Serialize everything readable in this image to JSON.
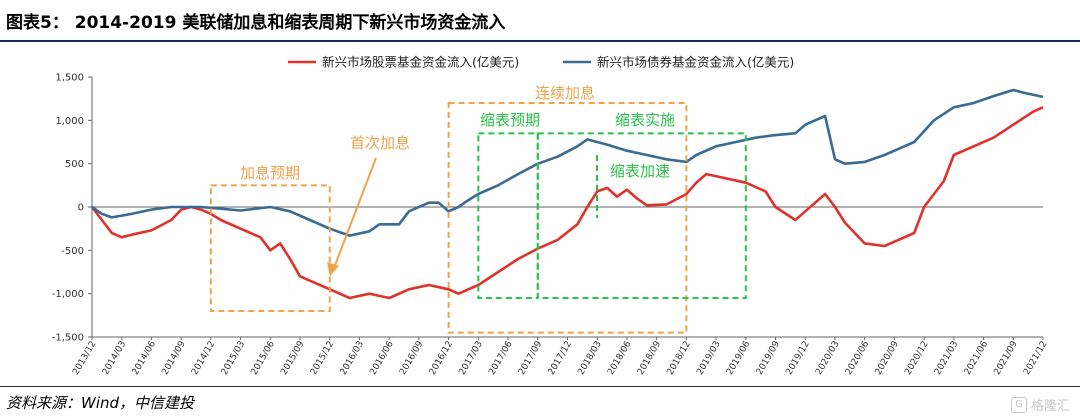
{
  "figure": {
    "title": "图表5： 2014-2019 美联储加息和缩表周期下新兴市场资金流入",
    "source": "资料来源：Wind，中信建投",
    "watermark": "格隆汇"
  },
  "colors": {
    "equity": "#e0312a",
    "bond": "#3a6b94",
    "orange": "#f0a24a",
    "green": "#27c24a",
    "rule": "#1a2c5b"
  },
  "chart_data": {
    "type": "line",
    "y_range": [
      -1500,
      1500
    ],
    "y_ticks": [
      "1,500",
      "1,000",
      "500",
      "0",
      "-500",
      "-1,000",
      "-1,500"
    ],
    "x_ticks": [
      "2013/12",
      "2014/03",
      "2014/06",
      "2014/09",
      "2014/12",
      "2015/03",
      "2015/06",
      "2015/09",
      "2015/12",
      "2016/03",
      "2016/06",
      "2016/09",
      "2016/12",
      "2017/03",
      "2017/06",
      "2017/09",
      "2017/12",
      "2018/03",
      "2018/06",
      "2018/09",
      "2018/12",
      "2019/03",
      "2019/06",
      "2019/09",
      "2019/12",
      "2020/03",
      "2020/06",
      "2020/09",
      "2020/12",
      "2021/03",
      "2021/06",
      "2021/09",
      "2021/12"
    ],
    "series": [
      {
        "name": "新兴市场股票基金资金流入(亿美元)",
        "color": "#e0312a",
        "points": [
          [
            "2013/12",
            0
          ],
          [
            "2014/01",
            -150
          ],
          [
            "2014/02",
            -300
          ],
          [
            "2014/03",
            -350
          ],
          [
            "2014/04",
            -320
          ],
          [
            "2014/06",
            -270
          ],
          [
            "2014/08",
            -150
          ],
          [
            "2014/09",
            -30
          ],
          [
            "2014/10",
            0
          ],
          [
            "2014/11",
            -30
          ],
          [
            "2014/12",
            -80
          ],
          [
            "2015/01",
            -150
          ],
          [
            "2015/03",
            -250
          ],
          [
            "2015/05",
            -350
          ],
          [
            "2015/06",
            -500
          ],
          [
            "2015/07",
            -420
          ],
          [
            "2015/08",
            -600
          ],
          [
            "2015/09",
            -800
          ],
          [
            "2015/10",
            -850
          ],
          [
            "2015/12",
            -950
          ],
          [
            "2016/02",
            -1050
          ],
          [
            "2016/04",
            -1000
          ],
          [
            "2016/06",
            -1050
          ],
          [
            "2016/08",
            -950
          ],
          [
            "2016/10",
            -900
          ],
          [
            "2016/12",
            -950
          ],
          [
            "2017/01",
            -1000
          ],
          [
            "2017/03",
            -900
          ],
          [
            "2017/05",
            -750
          ],
          [
            "2017/07",
            -600
          ],
          [
            "2017/09",
            -480
          ],
          [
            "2017/11",
            -380
          ],
          [
            "2018/01",
            -200
          ],
          [
            "2018/02",
            0
          ],
          [
            "2018/03",
            180
          ],
          [
            "2018/04",
            220
          ],
          [
            "2018/05",
            120
          ],
          [
            "2018/06",
            200
          ],
          [
            "2018/07",
            100
          ],
          [
            "2018/08",
            20
          ],
          [
            "2018/10",
            30
          ],
          [
            "2018/12",
            150
          ],
          [
            "2019/01",
            280
          ],
          [
            "2019/02",
            380
          ],
          [
            "2019/04",
            330
          ],
          [
            "2019/06",
            280
          ],
          [
            "2019/08",
            180
          ],
          [
            "2019/09",
            0
          ],
          [
            "2019/11",
            -150
          ],
          [
            "2019/12",
            -50
          ],
          [
            "2020/02",
            150
          ],
          [
            "2020/03",
            0
          ],
          [
            "2020/04",
            -180
          ],
          [
            "2020/05",
            -300
          ],
          [
            "2020/06",
            -420
          ],
          [
            "2020/08",
            -450
          ],
          [
            "2020/09",
            -400
          ],
          [
            "2020/11",
            -300
          ],
          [
            "2020/12",
            0
          ],
          [
            "2021/02",
            300
          ],
          [
            "2021/03",
            600
          ],
          [
            "2021/05",
            700
          ],
          [
            "2021/07",
            800
          ],
          [
            "2021/09",
            950
          ],
          [
            "2021/11",
            1100
          ],
          [
            "2021/12",
            1150
          ]
        ]
      },
      {
        "name": "新兴市场债券基金资金流入(亿美元)",
        "color": "#3a6b94",
        "points": [
          [
            "2013/12",
            0
          ],
          [
            "2014/01",
            -80
          ],
          [
            "2014/02",
            -120
          ],
          [
            "2014/04",
            -80
          ],
          [
            "2014/06",
            -30
          ],
          [
            "2014/08",
            0
          ],
          [
            "2014/09",
            0
          ],
          [
            "2014/11",
            0
          ],
          [
            "2015/01",
            -20
          ],
          [
            "2015/03",
            -40
          ],
          [
            "2015/06",
            0
          ],
          [
            "2015/08",
            -50
          ],
          [
            "2015/10",
            -150
          ],
          [
            "2015/12",
            -250
          ],
          [
            "2016/02",
            -330
          ],
          [
            "2016/04",
            -280
          ],
          [
            "2016/05",
            -200
          ],
          [
            "2016/07",
            -200
          ],
          [
            "2016/08",
            -50
          ],
          [
            "2016/10",
            50
          ],
          [
            "2016/11",
            50
          ],
          [
            "2016/12",
            -50
          ],
          [
            "2017/01",
            0
          ],
          [
            "2017/02",
            80
          ],
          [
            "2017/03",
            150
          ],
          [
            "2017/05",
            250
          ],
          [
            "2017/07",
            380
          ],
          [
            "2017/09",
            500
          ],
          [
            "2017/11",
            580
          ],
          [
            "2018/01",
            700
          ],
          [
            "2018/02",
            780
          ],
          [
            "2018/04",
            720
          ],
          [
            "2018/06",
            650
          ],
          [
            "2018/08",
            600
          ],
          [
            "2018/10",
            550
          ],
          [
            "2018/12",
            520
          ],
          [
            "2019/01",
            600
          ],
          [
            "2019/03",
            700
          ],
          [
            "2019/05",
            750
          ],
          [
            "2019/07",
            800
          ],
          [
            "2019/09",
            830
          ],
          [
            "2019/11",
            850
          ],
          [
            "2019/12",
            950
          ],
          [
            "2020/02",
            1050
          ],
          [
            "2020/03",
            550
          ],
          [
            "2020/04",
            500
          ],
          [
            "2020/06",
            520
          ],
          [
            "2020/08",
            600
          ],
          [
            "2020/10",
            700
          ],
          [
            "2020/11",
            750
          ],
          [
            "2021/01",
            1000
          ],
          [
            "2021/03",
            1150
          ],
          [
            "2021/05",
            1200
          ],
          [
            "2021/07",
            1280
          ],
          [
            "2021/09",
            1350
          ],
          [
            "2021/10",
            1320
          ],
          [
            "2021/12",
            1270
          ]
        ]
      }
    ],
    "annotations": [
      {
        "label": "加息预期",
        "color": "orange",
        "box": [
          "2014/12",
          "2015/12",
          250,
          -1200
        ]
      },
      {
        "label": "连续加息",
        "color": "orange",
        "box": [
          "2016/12",
          "2018/12",
          1200,
          -1450
        ]
      },
      {
        "label": "缩表预期",
        "color": "green",
        "box": [
          "2017/03",
          "2017/09",
          850,
          -1050
        ]
      },
      {
        "label": "缩表实施",
        "color": "green",
        "box": [
          "2017/09",
          "2019/06",
          850,
          -1050
        ]
      },
      {
        "label": "首次加息",
        "color": "orange",
        "text_at": [
          "2015/09",
          700
        ]
      },
      {
        "label": "缩表加速",
        "color": "green",
        "text_at": [
          "2018/09",
          400
        ]
      }
    ]
  }
}
